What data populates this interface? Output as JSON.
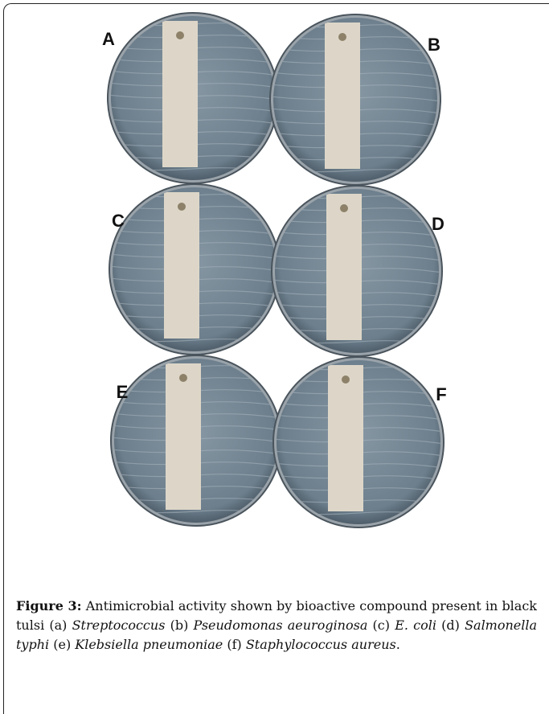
{
  "figure": {
    "plates": [
      {
        "label": "A"
      },
      {
        "label": "B"
      },
      {
        "label": "C"
      },
      {
        "label": "D"
      },
      {
        "label": "E"
      },
      {
        "label": "F"
      }
    ],
    "caption": {
      "label": "Figure 3:",
      "parts": [
        {
          "text": " Antimicrobial activity shown by bioactive compound present in black tulsi (a) ",
          "italic": false
        },
        {
          "text": "Streptococcus",
          "italic": true
        },
        {
          "text": " (b) ",
          "italic": false
        },
        {
          "text": "Pseudomonas aeuroginosa",
          "italic": true
        },
        {
          "text": " (c) ",
          "italic": false
        },
        {
          "text": "E. coli",
          "italic": true
        },
        {
          "text": " (d) ",
          "italic": false
        },
        {
          "text": "Salmonella typhi",
          "italic": true
        },
        {
          "text": " (e) ",
          "italic": false
        },
        {
          "text": "Klebsiella pneumoniae",
          "italic": true
        },
        {
          "text": " (f) ",
          "italic": false
        },
        {
          "text": "Staphylococcus aureus",
          "italic": true
        },
        {
          "text": ".",
          "italic": false
        }
      ]
    }
  }
}
